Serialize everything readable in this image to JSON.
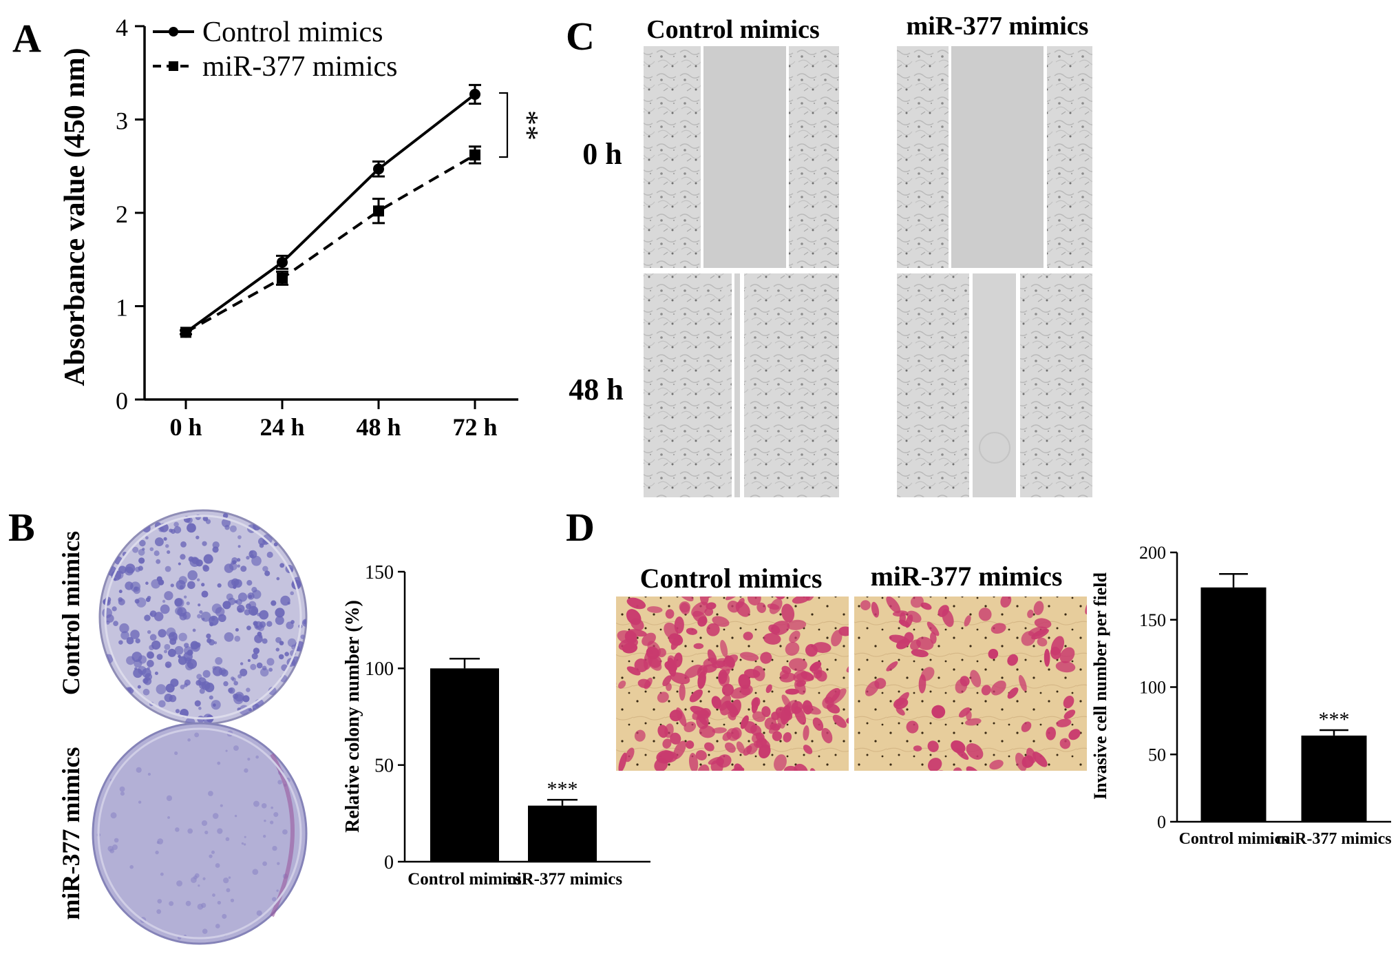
{
  "panel_labels": {
    "a": "A",
    "b": "B",
    "c": "C",
    "d": "D"
  },
  "panel_c": {
    "col_labels": [
      "Control mimics",
      "miR-377 mimics"
    ],
    "row_labels": [
      "0 h",
      "48 h"
    ]
  },
  "panel_b": {
    "plate_labels": [
      "Control mimics",
      "miR-377 mimics"
    ]
  },
  "panel_d": {
    "image_labels": [
      "Control mimics",
      "miR-377 mimics"
    ]
  },
  "colors": {
    "plate_control": "#6a66b8",
    "plate_mir": "#8a86c4",
    "stain_pink": "#c93a6e",
    "background_tan": "#e8cfa0",
    "scratch_gray": "#cfcfcf"
  },
  "chart_data": [
    {
      "id": "A",
      "type": "line",
      "title": "",
      "xlabel": "",
      "ylabel": "Absorbance value (450 nm)",
      "categories": [
        "0  h",
        "24  h",
        "48  h",
        "72  h"
      ],
      "y_ticks": [
        "0",
        "1",
        "2",
        "3",
        "4"
      ],
      "ylim": [
        0,
        4
      ],
      "series": [
        {
          "name": "Control mimics",
          "style": "solid",
          "marker": "circle",
          "values": [
            0.72,
            1.47,
            2.47,
            3.27
          ],
          "errors": [
            0.02,
            0.07,
            0.08,
            0.1
          ]
        },
        {
          "name": "miR-377 mimics",
          "style": "dashed",
          "marker": "square",
          "values": [
            0.72,
            1.3,
            2.02,
            2.62
          ],
          "errors": [
            0.02,
            0.07,
            0.13,
            0.09
          ]
        }
      ],
      "significance": "**",
      "legend": "top-left"
    },
    {
      "id": "B",
      "type": "bar",
      "xlabel": "",
      "ylabel": "Relative colony number (%)",
      "categories": [
        "Control mimics",
        "miR-377 mimics"
      ],
      "values": [
        100,
        29
      ],
      "errors": [
        5,
        3
      ],
      "y_ticks": [
        "0",
        "50",
        "100",
        "150"
      ],
      "ylim": [
        0,
        150
      ],
      "annotations": [
        "",
        "***"
      ]
    },
    {
      "id": "D",
      "type": "bar",
      "xlabel": "",
      "ylabel": "Invasive cell number per field",
      "categories": [
        "Control mimics",
        "miR-377 mimics"
      ],
      "values": [
        174,
        64
      ],
      "errors": [
        10,
        4
      ],
      "y_ticks": [
        "0",
        "50",
        "100",
        "150",
        "200"
      ],
      "ylim": [
        0,
        200
      ],
      "annotations": [
        "",
        "***"
      ]
    }
  ]
}
